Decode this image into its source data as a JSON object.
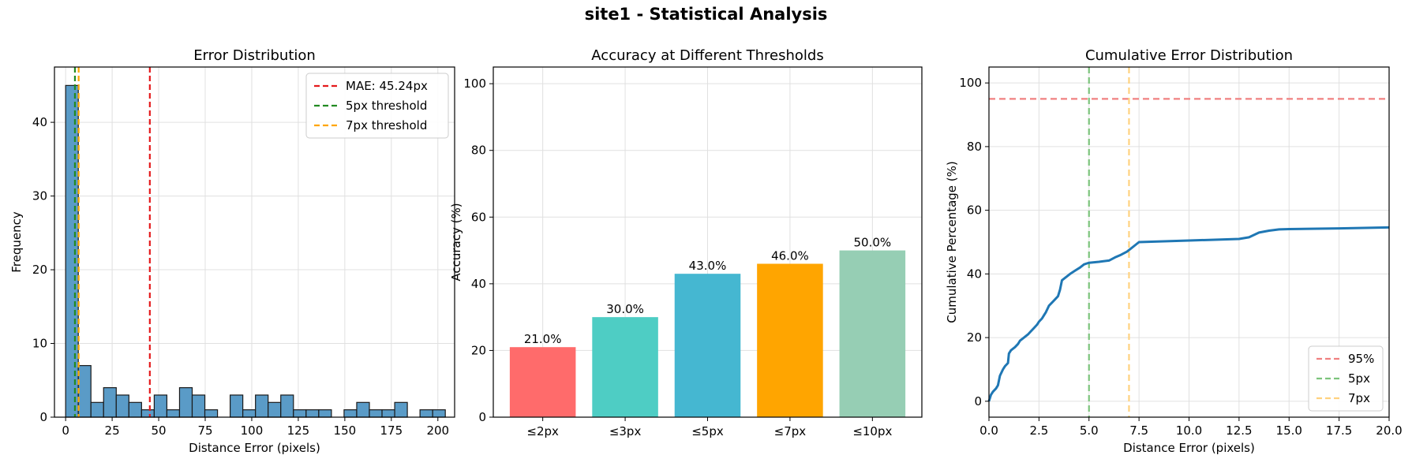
{
  "figure": {
    "title": "site1 - Statistical Analysis"
  },
  "colors": {
    "hist_bar": "#5a9bc7",
    "mean_line": "#e41a1c",
    "green_line": "#228b22",
    "orange_line": "#ffa500",
    "cdf_line": "#1f77b4",
    "grid": "#e0e0e0"
  },
  "chart_data": [
    {
      "type": "bar",
      "subtype": "histogram",
      "title": "Error Distribution",
      "xlabel": "Distance Error (pixels)",
      "ylabel": "Frequency",
      "xlim": [
        -6,
        209
      ],
      "ylim": [
        0,
        47.5
      ],
      "xticks": [
        0,
        25,
        50,
        75,
        100,
        125,
        150,
        175,
        200
      ],
      "yticks": [
        0,
        10,
        20,
        30,
        40
      ],
      "bin_width": 6.8,
      "bin_start": 0,
      "counts": [
        45,
        7,
        2,
        4,
        3,
        2,
        1,
        3,
        1,
        4,
        3,
        1,
        0,
        3,
        1,
        3,
        2,
        3,
        1,
        1,
        1,
        0,
        1,
        2,
        1,
        1,
        2,
        0,
        1,
        1
      ],
      "vlines": [
        {
          "x": 45.24,
          "style": "dashed",
          "color": "#e41a1c",
          "label": "MAE: 45.24px"
        },
        {
          "x": 5,
          "style": "dashed",
          "color": "#228b22",
          "label": "5px threshold"
        },
        {
          "x": 7,
          "style": "dashed",
          "color": "#ffa500",
          "label": "7px threshold"
        }
      ],
      "legend": "top-right",
      "grid": true
    },
    {
      "type": "bar",
      "title": "Accuracy at Different Thresholds",
      "xlabel": "",
      "ylabel": "Accuracy (%)",
      "ylim": [
        0,
        105
      ],
      "yticks": [
        0,
        20,
        40,
        60,
        80,
        100
      ],
      "categories": [
        "≤2px",
        "≤3px",
        "≤5px",
        "≤7px",
        "≤10px"
      ],
      "values": [
        21.0,
        30.0,
        43.0,
        46.0,
        50.0
      ],
      "value_labels": [
        "21.0%",
        "30.0%",
        "43.0%",
        "46.0%",
        "50.0%"
      ],
      "colors": [
        "#ff6b6b",
        "#4ecdc4",
        "#45b7d1",
        "#ffa500",
        "#96ceb4"
      ],
      "grid": true
    },
    {
      "type": "line",
      "title": "Cumulative Error Distribution",
      "xlabel": "Distance Error (pixels)",
      "ylabel": "Cumulative Percentage (%)",
      "xlim": [
        0,
        20
      ],
      "ylim": [
        -5,
        105
      ],
      "xticks": [
        0.0,
        2.5,
        5.0,
        7.5,
        10.0,
        12.5,
        15.0,
        17.5,
        20.0
      ],
      "xtick_labels": [
        "0.0",
        "2.5",
        "5.0",
        "7.5",
        "10.0",
        "12.5",
        "15.0",
        "17.5",
        "20.0"
      ],
      "yticks": [
        0,
        20,
        40,
        60,
        80,
        100
      ],
      "x": [
        0.0,
        0.1,
        0.2,
        0.35,
        0.45,
        0.55,
        0.7,
        0.8,
        0.95,
        1.0,
        1.1,
        1.3,
        1.45,
        1.55,
        1.75,
        1.85,
        1.95,
        2.1,
        2.25,
        2.4,
        2.5,
        2.65,
        2.75,
        2.85,
        3.0,
        3.15,
        3.3,
        3.45,
        3.55,
        3.65,
        3.85,
        4.05,
        4.3,
        4.55,
        4.75,
        4.9,
        5.0,
        5.5,
        6.0,
        6.3,
        6.6,
        6.9,
        7.1,
        7.3,
        7.5,
        10.0,
        12.5,
        13.0,
        13.5,
        14.0,
        14.5,
        15.0,
        17.5,
        20.0
      ],
      "y": [
        0,
        2,
        3,
        4,
        5,
        8,
        10,
        11,
        12,
        15,
        16,
        17,
        18,
        19,
        20,
        20.5,
        21,
        22,
        23,
        24,
        25,
        26,
        27,
        28,
        30,
        31,
        32,
        33,
        35,
        38,
        39,
        40,
        41,
        42,
        43,
        43.3,
        43.5,
        43.8,
        44.2,
        45.2,
        46,
        47,
        48,
        49,
        50,
        50.5,
        51,
        51.5,
        53,
        53.6,
        54,
        54.1,
        54.3,
        54.6
      ],
      "series": [
        {
          "name": "",
          "color": "#1f77b4"
        }
      ],
      "hlines": [
        {
          "y": 95,
          "style": "dashed",
          "color": "#f08080",
          "label": "95%"
        }
      ],
      "vlines": [
        {
          "x": 5,
          "style": "dashed",
          "color": "#7cc47c",
          "label": "5px"
        },
        {
          "x": 7,
          "style": "dashed",
          "color": "#ffd27f",
          "label": "7px"
        }
      ],
      "legend": "bottom-right",
      "grid": true
    }
  ]
}
